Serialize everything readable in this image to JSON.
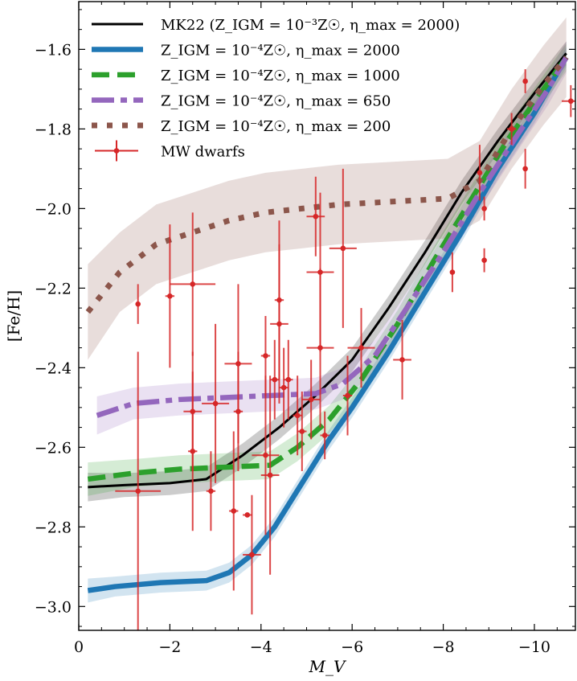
{
  "chart_data": {
    "type": "line",
    "xlabel": "M_V",
    "ylabel": "[Fe/H]",
    "xlim": [
      0.0,
      -10.9
    ],
    "ylim": [
      -3.06,
      -1.48
    ],
    "xticks": [
      0,
      -2,
      -4,
      -6,
      -8,
      -10
    ],
    "xtick_labels": [
      "0",
      "−2",
      "−4",
      "−6",
      "−8",
      "−10"
    ],
    "yticks": [
      -3.0,
      -2.8,
      -2.6,
      -2.4,
      -2.2,
      -2.0,
      -1.8,
      -1.6
    ],
    "ytick_labels": [
      "−3.0",
      "−2.8",
      "−2.6",
      "−2.4",
      "−2.2",
      "−2.0",
      "−1.8",
      "−1.6"
    ],
    "legend_position": "upper-left",
    "series": [
      {
        "name": "MK22 (Z_IGM = 10^-3 Z_sun, eta_max = 2000)",
        "legend_label": "MK22 (Z_IGM = 10⁻³Z☉, η_max = 2000)",
        "color": "#000000",
        "style": "solid",
        "x": [
          -0.2,
          -1.0,
          -2.0,
          -2.8,
          -3.6,
          -4.4,
          -5.2,
          -6.0,
          -6.8,
          -7.6,
          -8.4,
          -9.2,
          -10.0,
          -10.7
        ],
        "y": [
          -2.7,
          -2.695,
          -2.69,
          -2.68,
          -2.62,
          -2.55,
          -2.47,
          -2.38,
          -2.25,
          -2.11,
          -1.96,
          -1.83,
          -1.71,
          -1.61
        ],
        "band_width": 0.03
      },
      {
        "name": "Z_IGM = 10^-4 Z_sun, eta_max = 2000",
        "legend_label": "Z_IGM = 10⁻⁴Z☉, η_max = 2000",
        "color": "#1f77b4",
        "style": "solid-thick",
        "x": [
          -0.2,
          -0.8,
          -1.8,
          -2.8,
          -3.3,
          -3.8,
          -4.3,
          -4.9,
          -5.5,
          -6.0,
          -6.8,
          -7.6,
          -8.4,
          -9.2,
          -10.0,
          -10.7
        ],
        "y": [
          -2.96,
          -2.95,
          -2.94,
          -2.935,
          -2.915,
          -2.87,
          -2.8,
          -2.69,
          -2.58,
          -2.5,
          -2.36,
          -2.21,
          -2.06,
          -1.9,
          -1.76,
          -1.62
        ],
        "band_width": 0.025
      },
      {
        "name": "Z_IGM = 10^-4 Z_sun, eta_max = 1000",
        "legend_label": "Z_IGM = 10⁻⁴Z☉, η_max = 1000",
        "color": "#2ca02c",
        "style": "dashed",
        "x": [
          -0.2,
          -1.2,
          -2.2,
          -3.2,
          -4.2,
          -4.8,
          -5.5,
          -6.2,
          -7.0,
          -7.8,
          -8.6,
          -9.4,
          -10.2,
          -10.7
        ],
        "y": [
          -2.68,
          -2.665,
          -2.655,
          -2.65,
          -2.645,
          -2.6,
          -2.53,
          -2.43,
          -2.29,
          -2.13,
          -1.98,
          -1.83,
          -1.7,
          -1.62
        ],
        "band_width": 0.035
      },
      {
        "name": "Z_IGM = 10^-4 Z_sun, eta_max = 650",
        "legend_label": "Z_IGM = 10⁻⁴Z☉, η_max = 650",
        "color": "#9467bd",
        "style": "dashdot",
        "x": [
          -0.4,
          -1.2,
          -2.2,
          -3.2,
          -4.2,
          -5.2,
          -5.8,
          -6.5,
          -7.2,
          -8.0,
          -8.8,
          -9.6,
          -10.3,
          -10.7
        ],
        "y": [
          -2.52,
          -2.49,
          -2.48,
          -2.475,
          -2.47,
          -2.465,
          -2.44,
          -2.37,
          -2.25,
          -2.11,
          -1.96,
          -1.82,
          -1.7,
          -1.62
        ],
        "band_width": 0.04
      },
      {
        "name": "Z_IGM = 10^-4 Z_sun, eta_max = 200",
        "legend_label": "Z_IGM = 10⁻⁴Z☉, η_max = 200",
        "color": "#8c564b",
        "style": "dotted",
        "x": [
          -0.2,
          -0.9,
          -1.7,
          -2.5,
          -3.3,
          -4.1,
          -4.9,
          -5.7,
          -6.5,
          -7.3,
          -8.1,
          -8.8,
          -9.5,
          -10.2,
          -10.7
        ],
        "y": [
          -2.26,
          -2.16,
          -2.09,
          -2.06,
          -2.03,
          -2.01,
          -2.0,
          -1.99,
          -1.985,
          -1.98,
          -1.975,
          -1.93,
          -1.8,
          -1.69,
          -1.62
        ],
        "band_width": 0.1
      }
    ],
    "points": {
      "name": "MW dwarfs",
      "color": "#d62728",
      "data": [
        {
          "x": -1.3,
          "y": -2.24,
          "xerr": 0.0,
          "yerr": 0.05
        },
        {
          "x": -1.3,
          "y": -2.71,
          "xerr": 0.5,
          "yerr": 0.35
        },
        {
          "x": -2.0,
          "y": -2.22,
          "xerr": 0.1,
          "yerr": 0.18
        },
        {
          "x": -2.5,
          "y": -2.19,
          "xerr": 0.5,
          "yerr": 0.18
        },
        {
          "x": -2.5,
          "y": -2.51,
          "xerr": 0.2,
          "yerr": 0.15
        },
        {
          "x": -2.5,
          "y": -2.61,
          "xerr": 0.1,
          "yerr": 0.2
        },
        {
          "x": -2.9,
          "y": -2.71,
          "xerr": 0.1,
          "yerr": 0.1
        },
        {
          "x": -3.0,
          "y": -2.49,
          "xerr": 0.3,
          "yerr": 0.2
        },
        {
          "x": -3.4,
          "y": -2.76,
          "xerr": 0.1,
          "yerr": 0.2
        },
        {
          "x": -3.5,
          "y": -2.39,
          "xerr": 0.3,
          "yerr": 0.2
        },
        {
          "x": -3.5,
          "y": -2.51,
          "xerr": 0.1,
          "yerr": 0.15
        },
        {
          "x": -3.7,
          "y": -2.77,
          "xerr": 0.1,
          "yerr": 0.0
        },
        {
          "x": -3.8,
          "y": -2.87,
          "xerr": 0.2,
          "yerr": 0.15
        },
        {
          "x": -4.1,
          "y": -2.62,
          "xerr": 0.3,
          "yerr": 0.2
        },
        {
          "x": -4.1,
          "y": -2.37,
          "xerr": 0.1,
          "yerr": 0.1
        },
        {
          "x": -4.2,
          "y": -2.67,
          "xerr": 0.2,
          "yerr": 0.25
        },
        {
          "x": -4.3,
          "y": -2.43,
          "xerr": 0.1,
          "yerr": 0.1
        },
        {
          "x": -4.4,
          "y": -2.29,
          "xerr": 0.2,
          "yerr": 0.2
        },
        {
          "x": -4.4,
          "y": -2.23,
          "xerr": 0.1,
          "yerr": 0.2
        },
        {
          "x": -4.5,
          "y": -2.45,
          "xerr": 0.1,
          "yerr": 0.1
        },
        {
          "x": -4.6,
          "y": -2.43,
          "xerr": 0.1,
          "yerr": 0.1
        },
        {
          "x": -4.8,
          "y": -2.52,
          "xerr": 0.1,
          "yerr": 0.1
        },
        {
          "x": -4.9,
          "y": -2.56,
          "xerr": 0.1,
          "yerr": 0.1
        },
        {
          "x": -5.1,
          "y": -2.48,
          "xerr": 0.2,
          "yerr": 0.1
        },
        {
          "x": -5.2,
          "y": -2.02,
          "xerr": 0.2,
          "yerr": 0.1
        },
        {
          "x": -5.3,
          "y": -2.16,
          "xerr": 0.3,
          "yerr": 0.2
        },
        {
          "x": -5.3,
          "y": -2.35,
          "xerr": 0.3,
          "yerr": 0.2
        },
        {
          "x": -5.4,
          "y": -2.57,
          "xerr": 0.1,
          "yerr": 0.06
        },
        {
          "x": -5.8,
          "y": -2.1,
          "xerr": 0.3,
          "yerr": 0.2
        },
        {
          "x": -5.9,
          "y": -2.47,
          "xerr": 0.1,
          "yerr": 0.1
        },
        {
          "x": -6.2,
          "y": -2.35,
          "xerr": 0.3,
          "yerr": 0.1
        },
        {
          "x": -7.1,
          "y": -2.38,
          "xerr": 0.2,
          "yerr": 0.1
        },
        {
          "x": -8.2,
          "y": -2.16,
          "xerr": 0.0,
          "yerr": 0.05
        },
        {
          "x": -8.8,
          "y": -1.91,
          "xerr": 0.0,
          "yerr": 0.07
        },
        {
          "x": -8.9,
          "y": -2.0,
          "xerr": 0.0,
          "yerr": 0.03
        },
        {
          "x": -8.9,
          "y": -2.13,
          "xerr": 0.0,
          "yerr": 0.03
        },
        {
          "x": -9.5,
          "y": -1.8,
          "xerr": 0.1,
          "yerr": 0.04
        },
        {
          "x": -9.8,
          "y": -1.68,
          "xerr": 0.0,
          "yerr": 0.03
        },
        {
          "x": -9.8,
          "y": -1.9,
          "xerr": 0.0,
          "yerr": 0.05
        },
        {
          "x": -10.8,
          "y": -1.73,
          "xerr": 0.2,
          "yerr": 0.04
        }
      ]
    }
  }
}
